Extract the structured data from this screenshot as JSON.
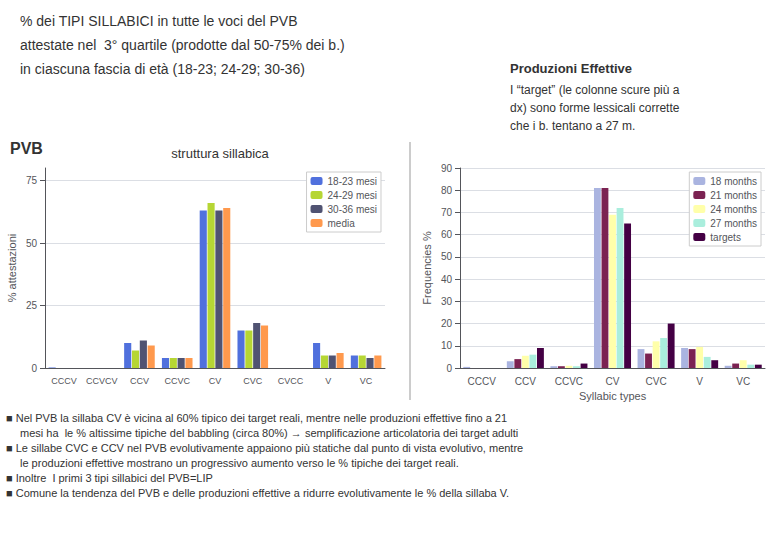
{
  "chart_data": [
    {
      "type": "bar",
      "title": "struttura sillabica",
      "ylabel": "% attestazioni",
      "categories": [
        "CCCV",
        "CCVCV",
        "CCV",
        "CCVC",
        "CV",
        "CVC",
        "CVCC",
        "V",
        "VC"
      ],
      "series": [
        {
          "name": "18-23 mesi",
          "values": [
            0.2,
            0.0,
            10.0,
            4.0,
            63.0,
            15.0,
            0.0,
            10.0,
            5.0
          ]
        },
        {
          "name": "24-29 mesi",
          "values": [
            0.0,
            0.0,
            7.0,
            4.0,
            66.0,
            15.0,
            0.0,
            5.0,
            5.0
          ]
        },
        {
          "name": "30-36 mesi",
          "values": [
            0.0,
            0.0,
            11.0,
            4.0,
            63.0,
            18.0,
            0.0,
            5.0,
            4.0
          ]
        },
        {
          "name": "media",
          "values": [
            0.0,
            0.0,
            9.0,
            4.0,
            64.0,
            17.0,
            0.0,
            6.0,
            5.0
          ]
        }
      ],
      "ylim": [
        0,
        80
      ],
      "yticks": [
        0,
        25,
        50,
        75
      ],
      "grid": true,
      "legend": "upper right",
      "annotations": [
        "PVB",
        "% dei TIPI SILLABICI in tutte le voci del PVB",
        "attestate nel  3° quartile (prodotte dal 50-75% dei b.)",
        "in ciascuna fascia di età (18-23; 24-29; 30-36)"
      ]
    },
    {
      "type": "bar",
      "xlabel": "Syllabic types",
      "ylabel": "Frequencies %",
      "categories": [
        "CCCV",
        "CCV",
        "CCVC",
        "CV",
        "CVC",
        "V",
        "VC"
      ],
      "series": [
        {
          "name": "18 months",
          "color": "#aab4e0",
          "values": [
            0.5,
            3.0,
            0.8,
            81.0,
            8.5,
            9.0,
            1.0
          ]
        },
        {
          "name": "21 months",
          "color": "#7b2252",
          "values": [
            0.0,
            4.0,
            0.8,
            81.0,
            6.5,
            8.5,
            2.0
          ]
        },
        {
          "name": "24 months",
          "color": "#ffffaa",
          "values": [
            0.0,
            5.5,
            1.0,
            69.0,
            12.0,
            9.5,
            3.5
          ]
        },
        {
          "name": "27 months",
          "color": "#aaeedd",
          "values": [
            0.0,
            6.0,
            0.8,
            72.0,
            13.5,
            5.0,
            1.5
          ]
        },
        {
          "name": "targets",
          "color": "#440044",
          "values": [
            0.0,
            9.0,
            2.0,
            65.0,
            20.0,
            3.5,
            1.5
          ]
        }
      ],
      "ylim": [
        0,
        90
      ],
      "yticks": [
        0,
        10,
        20,
        30,
        40,
        50,
        60,
        70,
        80,
        90
      ],
      "grid": true,
      "legend": "upper right",
      "annotations": [
        "Produzioni Effettive",
        "I “target” (le colonne scure più a",
        "dx) sono forme lessicali corrette",
        "che i b. tentano a 27 m.",
        "■ Nel PVB la sillaba CV è vicina al 60% tipico dei target reali, mentre nelle produzioni effettive fino a 21",
        "mesi ha  le % altissime tipiche del babbling (circa 80%) → semplificazione articolatoria dei target adulti",
        "■ Le sillabe CVC e CCV nel PVB evolutivamente appaiono più statiche dal punto di vista evolutivo, mentre",
        "le produzioni effettive mostrano un progressivo aumento verso le % tipiche dei target reali.",
        "■ Inoltre  I primi 3 tipi sillabici del PVB=LIP",
        "■ Comune la tendenza del PVB e delle produzioni effettive a ridurre evolutivamente le % della sillaba V."
      ]
    }
  ]
}
